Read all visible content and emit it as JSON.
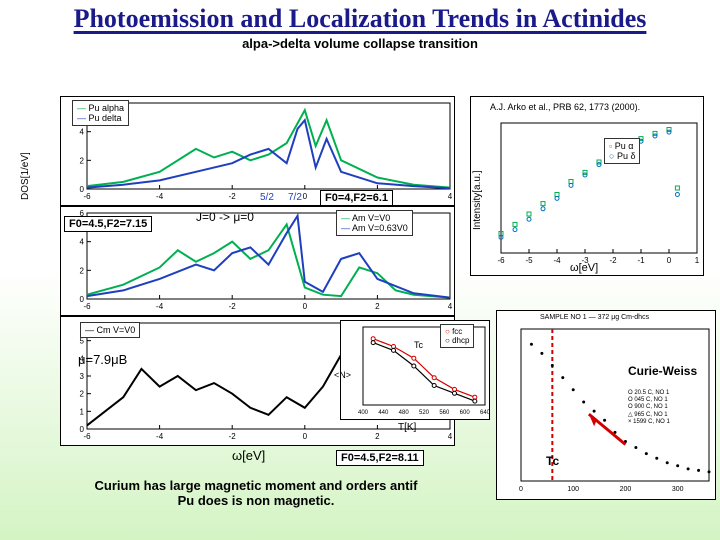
{
  "title": "Photoemission and Localization Trends in Actinides",
  "subtitle": "alpa->delta volume collapse transition",
  "footer_line1": "Curium has large magnetic moment and orders antif",
  "footer_line2": "Pu does is non magnetic.",
  "chart1": {
    "ylabel": "DOS[1/eV]",
    "xlim": [
      -6,
      4
    ],
    "ylim": [
      0,
      6
    ],
    "xticks": [
      -6,
      -4,
      -2,
      0,
      2,
      4
    ],
    "yticks": [
      0,
      2,
      4,
      6
    ],
    "legend": [
      {
        "label": "Pu alpha",
        "color": "#00b050"
      },
      {
        "label": "Pu delta",
        "color": "#1f3fbf"
      }
    ],
    "series": [
      {
        "color": "#00b050",
        "width": 2,
        "data": [
          [
            -6,
            0.2
          ],
          [
            -5,
            0.5
          ],
          [
            -4,
            1.2
          ],
          [
            -3,
            2.8
          ],
          [
            -2.5,
            2.2
          ],
          [
            -2,
            2.6
          ],
          [
            -1.5,
            2.0
          ],
          [
            -1,
            2.4
          ],
          [
            -0.5,
            3.2
          ],
          [
            0,
            5.5
          ],
          [
            0.3,
            3.0
          ],
          [
            0.6,
            4.8
          ],
          [
            1,
            2.0
          ],
          [
            2,
            0.8
          ],
          [
            3,
            0.3
          ],
          [
            4,
            0.1
          ]
        ]
      },
      {
        "color": "#1f3fbf",
        "width": 2,
        "data": [
          [
            -6,
            0.1
          ],
          [
            -5,
            0.3
          ],
          [
            -4,
            0.6
          ],
          [
            -3,
            1.2
          ],
          [
            -2,
            1.8
          ],
          [
            -1.5,
            2.4
          ],
          [
            -1,
            2.8
          ],
          [
            -0.5,
            1.8
          ],
          [
            -0.2,
            4.2
          ],
          [
            0,
            4.8
          ],
          [
            0.3,
            1.5
          ],
          [
            0.6,
            3.5
          ],
          [
            1,
            1.2
          ],
          [
            2,
            0.4
          ],
          [
            3,
            0.2
          ],
          [
            4,
            0.05
          ]
        ]
      }
    ],
    "sublabels": {
      "left": "5/2",
      "right": "7/2",
      "color": "#1f3fbf"
    },
    "annotation": "F0=4,F2=6.1"
  },
  "chart2": {
    "xlim": [
      -6,
      4
    ],
    "ylim": [
      0,
      6
    ],
    "xticks": [
      -6,
      -4,
      -2,
      0,
      2,
      4
    ],
    "yticks": [
      0,
      2,
      4,
      6
    ],
    "top_text": "J=0 -> μ=0",
    "legend": [
      {
        "label": "Am V=V0",
        "color": "#00b050"
      },
      {
        "label": "Am V=0.63V0",
        "color": "#1f3fbf"
      }
    ],
    "series": [
      {
        "color": "#00b050",
        "width": 2,
        "data": [
          [
            -6,
            0.3
          ],
          [
            -5,
            1.0
          ],
          [
            -4,
            2.2
          ],
          [
            -3.5,
            3.4
          ],
          [
            -3,
            2.6
          ],
          [
            -2.5,
            3.2
          ],
          [
            -2,
            4.0
          ],
          [
            -1.5,
            2.8
          ],
          [
            -1,
            3.4
          ],
          [
            -0.5,
            5.2
          ],
          [
            0,
            0.8
          ],
          [
            0.5,
            0.3
          ],
          [
            1,
            0.2
          ],
          [
            1.5,
            2.2
          ],
          [
            2,
            1.8
          ],
          [
            2.5,
            0.6
          ],
          [
            3,
            0.3
          ],
          [
            4,
            0.1
          ]
        ]
      },
      {
        "color": "#1f3fbf",
        "width": 2,
        "data": [
          [
            -6,
            0.2
          ],
          [
            -5,
            0.6
          ],
          [
            -4,
            1.4
          ],
          [
            -3,
            2.4
          ],
          [
            -2.5,
            2.0
          ],
          [
            -2,
            3.2
          ],
          [
            -1.5,
            3.6
          ],
          [
            -1,
            2.4
          ],
          [
            -0.5,
            4.6
          ],
          [
            -0.2,
            5.8
          ],
          [
            0,
            1.2
          ],
          [
            0.5,
            0.5
          ],
          [
            1,
            2.8
          ],
          [
            1.5,
            3.2
          ],
          [
            2,
            1.4
          ],
          [
            3,
            0.4
          ],
          [
            4,
            0.1
          ]
        ]
      }
    ],
    "annotation": "F0=4.5,F2=7.15"
  },
  "chart3": {
    "xlabel": "ω[eV]",
    "xlim": [
      -6,
      4
    ],
    "ylim": [
      0,
      6
    ],
    "xticks": [
      -6,
      -4,
      -2,
      0,
      2,
      4
    ],
    "yticks": [
      0,
      1,
      2,
      3,
      4,
      5
    ],
    "legend": [
      {
        "label": "Cm V=V0",
        "color": "#000000"
      }
    ],
    "mu_text": "μ=7.9μB",
    "series": [
      {
        "color": "#000000",
        "width": 2,
        "data": [
          [
            -6,
            0.2
          ],
          [
            -5,
            1.8
          ],
          [
            -4.5,
            3.4
          ],
          [
            -4,
            2.4
          ],
          [
            -3.5,
            3.0
          ],
          [
            -3,
            2.2
          ],
          [
            -2.5,
            2.6
          ],
          [
            -2,
            2.0
          ],
          [
            -1.5,
            1.2
          ],
          [
            -1,
            0.8
          ],
          [
            -0.5,
            1.8
          ],
          [
            0,
            1.2
          ],
          [
            0.5,
            2.4
          ],
          [
            1,
            4.2
          ],
          [
            1.5,
            3.8
          ],
          [
            2,
            2.6
          ],
          [
            2.5,
            1.4
          ],
          [
            3,
            3.0
          ],
          [
            3.5,
            2.2
          ],
          [
            4,
            0.8
          ]
        ]
      }
    ],
    "annotation": "F0=4.5,F2=8.11"
  },
  "chart4": {
    "top_text": "A.J. Arko et al., PRB 62, 1773 (2000).",
    "xlabel": "ω[eV]",
    "ylabel": "Intensity[a.u.]",
    "xlim": [
      -6,
      1
    ],
    "xticks": [
      -6,
      -5,
      -4,
      -3,
      -2,
      -1,
      0,
      1
    ],
    "legend": [
      {
        "label": "Pu α",
        "color": "#00b050",
        "marker": "square"
      },
      {
        "label": "Pu δ",
        "color": "#0070c0",
        "marker": "circle"
      }
    ],
    "series": [
      {
        "color": "#00b050",
        "type": "scatter",
        "data": [
          [
            -6,
            0.15
          ],
          [
            -5.5,
            0.22
          ],
          [
            -5,
            0.3
          ],
          [
            -4.5,
            0.38
          ],
          [
            -4,
            0.45
          ],
          [
            -3.5,
            0.55
          ],
          [
            -3,
            0.62
          ],
          [
            -2.5,
            0.7
          ],
          [
            -2,
            0.78
          ],
          [
            -1.5,
            0.84
          ],
          [
            -1,
            0.88
          ],
          [
            -0.5,
            0.92
          ],
          [
            0,
            0.95
          ],
          [
            0.3,
            0.5
          ]
        ]
      },
      {
        "color": "#0070c0",
        "type": "scatter",
        "data": [
          [
            -6,
            0.12
          ],
          [
            -5.5,
            0.18
          ],
          [
            -5,
            0.26
          ],
          [
            -4.5,
            0.34
          ],
          [
            -4,
            0.42
          ],
          [
            -3.5,
            0.52
          ],
          [
            -3,
            0.6
          ],
          [
            -2.5,
            0.68
          ],
          [
            -2,
            0.76
          ],
          [
            -1.5,
            0.82
          ],
          [
            -1,
            0.86
          ],
          [
            -0.5,
            0.9
          ],
          [
            0,
            0.93
          ],
          [
            0.3,
            0.45
          ]
        ]
      }
    ]
  },
  "chart5": {
    "xlabel": "T[K]",
    "ylabel": "<N>",
    "xlim": [
      400,
      640
    ],
    "ylim": [
      0.5,
      2.5
    ],
    "xticks": [
      400,
      440,
      480,
      520,
      560,
      600,
      640
    ],
    "legend": [
      {
        "label": "fcc",
        "color": "#d40000",
        "marker": "circle"
      },
      {
        "label": "dhcp",
        "color": "#000000",
        "marker": "circle"
      }
    ],
    "tc_label": "Tc",
    "series": [
      {
        "color": "#d40000",
        "data": [
          [
            420,
            2.2
          ],
          [
            460,
            2.0
          ],
          [
            500,
            1.7
          ],
          [
            540,
            1.2
          ],
          [
            580,
            0.9
          ],
          [
            620,
            0.7
          ]
        ]
      },
      {
        "color": "#000000",
        "data": [
          [
            420,
            2.1
          ],
          [
            460,
            1.9
          ],
          [
            500,
            1.5
          ],
          [
            540,
            1.0
          ],
          [
            580,
            0.8
          ],
          [
            620,
            0.6
          ]
        ]
      }
    ]
  },
  "chart6": {
    "xlim": [
      0,
      360
    ],
    "xticks": [
      0,
      100,
      200,
      300
    ],
    "curie_label": "Curie-Weiss",
    "tc_label": "Tc",
    "sample_text": "SAMPLE NO 1  — 372 μg  Cm-dhcs",
    "legend_items": [
      "O 20.5 C, NO 1",
      "O 045 C, NO 1",
      "O 900 C, NO 1",
      "△ 965 C, NO 1",
      "× 1599 C, NO 1"
    ],
    "series": [
      {
        "color": "#000000",
        "type": "scatter",
        "data": [
          [
            20,
            4.5
          ],
          [
            40,
            4.2
          ],
          [
            60,
            3.8
          ],
          [
            80,
            3.4
          ],
          [
            100,
            3.0
          ],
          [
            120,
            2.6
          ],
          [
            140,
            2.3
          ],
          [
            160,
            2.0
          ],
          [
            180,
            1.6
          ],
          [
            200,
            1.3
          ],
          [
            220,
            1.1
          ],
          [
            240,
            0.9
          ],
          [
            260,
            0.75
          ],
          [
            280,
            0.6
          ],
          [
            300,
            0.5
          ],
          [
            320,
            0.4
          ],
          [
            340,
            0.35
          ],
          [
            360,
            0.3
          ]
        ]
      }
    ]
  }
}
